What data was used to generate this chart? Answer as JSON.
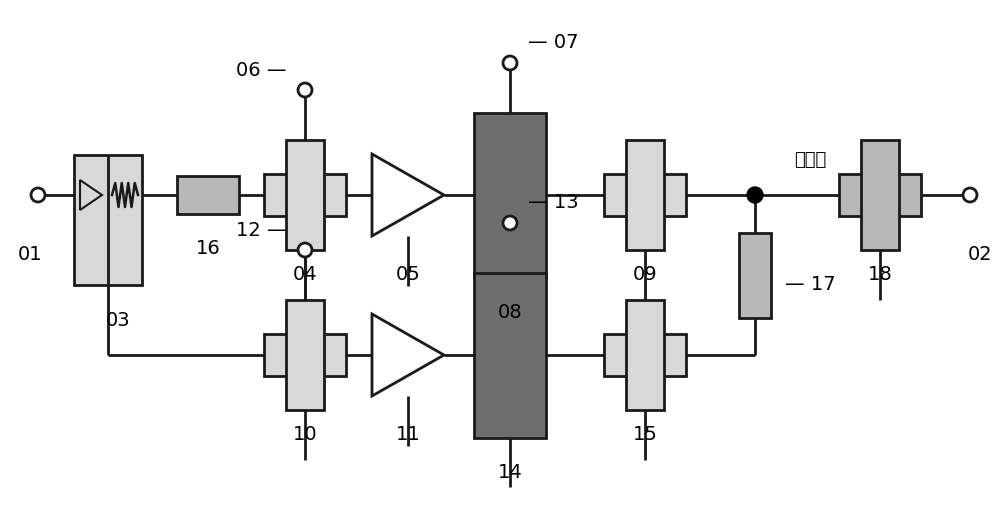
{
  "bg_color": "#ffffff",
  "lc": "#1a1a1a",
  "lg": "#d8d8d8",
  "mg": "#b8b8b8",
  "dg": "#6e6e6e",
  "lw": 2.0,
  "figsize": [
    10.0,
    5.19
  ],
  "dpi": 100
}
